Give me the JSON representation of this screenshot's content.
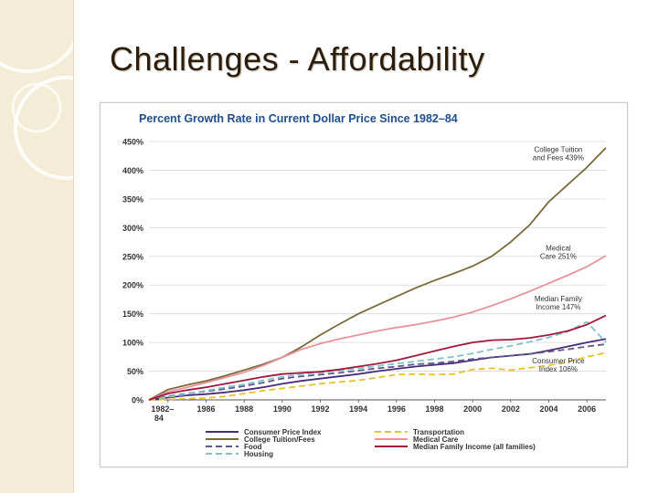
{
  "slide": {
    "title": "Challenges - Affordability"
  },
  "colors": {
    "background_strip": "#f3ecd6",
    "title_text": "#2b1d0e",
    "chart_title": "#1f4e8c",
    "cpi": "#4b2a7b",
    "tuition": "#7a6a3a",
    "food": "#5a5a8a",
    "housing": "#7fc3c7",
    "transportation": "#e8c22c",
    "medical": "#e8929b",
    "median_income": "#a0183c"
  },
  "chart_data": {
    "type": "line",
    "title": "Percent Growth Rate in Current Dollar Price Since 1982–84",
    "xlabel": "",
    "ylabel": "",
    "x_tick_labels": [
      "1982–84",
      "1986",
      "1988",
      "1990",
      "1992",
      "1994",
      "1996",
      "1998",
      "2000",
      "2002",
      "2004",
      "2006"
    ],
    "y_tick_labels": [
      "0%",
      "50%",
      "100%",
      "150%",
      "200%",
      "250%",
      "300%",
      "350%",
      "400%",
      "450%"
    ],
    "xlim": [
      1983,
      2007
    ],
    "ylim": [
      0,
      450
    ],
    "grid": "horizontal",
    "legend_position": "bottom",
    "x": [
      1983,
      1984,
      1985,
      1986,
      1987,
      1988,
      1989,
      1990,
      1991,
      1992,
      1993,
      1994,
      1995,
      1996,
      1997,
      1998,
      1999,
      2000,
      2001,
      2002,
      2003,
      2004,
      2005,
      2006,
      2007
    ],
    "series": [
      {
        "name": "Consumer Price Index",
        "key": "cpi",
        "dash": "solid",
        "values": [
          0,
          4,
          8,
          10,
          13,
          17,
          22,
          28,
          33,
          37,
          41,
          45,
          50,
          54,
          58,
          61,
          64,
          69,
          74,
          77,
          80,
          86,
          93,
          100,
          106
        ]
      },
      {
        "name": "College Tuition/Fees",
        "key": "tuition",
        "dash": "solid",
        "values": [
          0,
          18,
          26,
          33,
          42,
          52,
          62,
          74,
          92,
          113,
          132,
          150,
          165,
          180,
          195,
          208,
          220,
          233,
          250,
          275,
          305,
          345,
          375,
          405,
          439
        ]
      },
      {
        "name": "Food",
        "key": "food",
        "dash": "dashed",
        "values": [
          0,
          6,
          11,
          15,
          19,
          24,
          30,
          37,
          41,
          44,
          47,
          51,
          55,
          58,
          62,
          64,
          67,
          71,
          74,
          77,
          80,
          84,
          88,
          93,
          97
        ]
      },
      {
        "name": "Housing",
        "key": "housing",
        "dash": "dashed",
        "values": [
          0,
          5,
          10,
          16,
          22,
          27,
          34,
          40,
          45,
          48,
          51,
          55,
          59,
          63,
          67,
          71,
          75,
          81,
          88,
          94,
          101,
          109,
          119,
          136,
          100
        ]
      },
      {
        "name": "Transportation",
        "key": "transportation",
        "dash": "dashed",
        "values": [
          0,
          1,
          2,
          3,
          6,
          11,
          16,
          20,
          24,
          28,
          31,
          34,
          39,
          44,
          45,
          44,
          45,
          53,
          55,
          52,
          56,
          60,
          66,
          75,
          82
        ]
      },
      {
        "name": "Medical Care",
        "key": "medical",
        "dash": "solid",
        "values": [
          0,
          14,
          22,
          30,
          39,
          48,
          60,
          74,
          88,
          98,
          106,
          113,
          120,
          126,
          131,
          137,
          144,
          153,
          164,
          176,
          189,
          203,
          217,
          232,
          251
        ]
      },
      {
        "name": "Median Family Income (all families)",
        "key": "median_income",
        "dash": "solid",
        "values": [
          0,
          11,
          17,
          22,
          28,
          34,
          40,
          45,
          47,
          49,
          53,
          58,
          63,
          69,
          77,
          85,
          93,
          100,
          104,
          105,
          108,
          113,
          120,
          131,
          147
        ]
      }
    ],
    "annotations": [
      {
        "lines": [
          "College Tuition",
          "and Fees 439%"
        ],
        "x": 2004.5,
        "y": 432
      },
      {
        "lines": [
          "Medical",
          "Care 251%"
        ],
        "x": 2004.5,
        "y": 260
      },
      {
        "lines": [
          "Median Family",
          "Income 147%"
        ],
        "x": 2004.5,
        "y": 172
      },
      {
        "lines": [
          "Consumer Price",
          "Index 106%"
        ],
        "x": 2004.5,
        "y": 64
      }
    ]
  }
}
